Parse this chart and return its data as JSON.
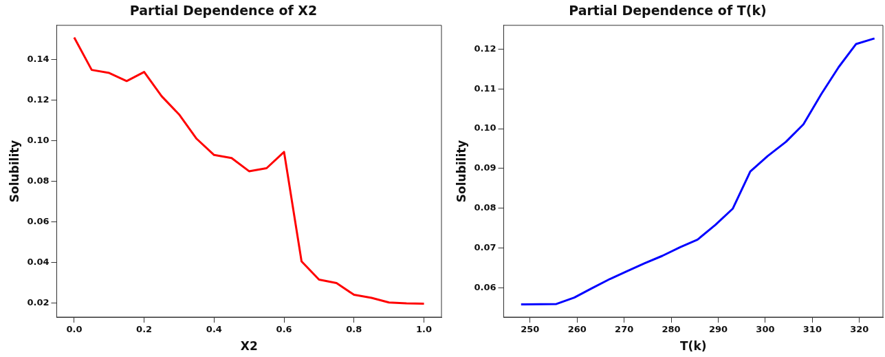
{
  "chart_data": [
    {
      "type": "line",
      "title": "Partial Dependence of X2",
      "xlabel": "X2",
      "ylabel": "Solubility",
      "grid": false,
      "legend": false,
      "marker": "none",
      "line_style": "solid",
      "x": [
        0,
        0.05,
        0.1,
        0.15,
        0.2,
        0.25,
        0.3,
        0.35,
        0.4,
        0.45,
        0.5,
        0.55,
        0.6,
        0.65,
        0.7,
        0.75,
        0.8,
        0.85,
        0.9,
        0.95,
        1.0
      ],
      "series": [
        {
          "color": "#ff0000",
          "values": [
            0.151,
            0.135,
            0.1335,
            0.1295,
            0.134,
            0.122,
            0.113,
            0.101,
            0.093,
            0.0915,
            0.085,
            0.0865,
            0.0945,
            0.0405,
            0.0315,
            0.0298,
            0.024,
            0.0225,
            0.0202,
            0.0198,
            0.0196
          ]
        }
      ],
      "xlim": [
        -0.05,
        1.05
      ],
      "ylim": [
        0.013,
        0.157
      ],
      "xticks": [
        {
          "value": 0,
          "label": "0.0"
        },
        {
          "value": 0.2,
          "label": "0.2"
        },
        {
          "value": 0.4,
          "label": "0.4"
        },
        {
          "value": 0.6,
          "label": "0.6"
        },
        {
          "value": 0.8,
          "label": "0.8"
        },
        {
          "value": 1,
          "label": "1.0"
        }
      ],
      "yticks": [
        {
          "value": 0.02,
          "label": "0.02"
        },
        {
          "value": 0.04,
          "label": "0.04"
        },
        {
          "value": 0.06,
          "label": "0.06"
        },
        {
          "value": 0.08,
          "label": "0.08"
        },
        {
          "value": 0.1,
          "label": "0.10"
        },
        {
          "value": 0.12,
          "label": "0.12"
        },
        {
          "value": 0.14,
          "label": "0.14"
        }
      ]
    },
    {
      "type": "line",
      "title": "Partial Dependence of T(k)",
      "xlabel": "T(k)",
      "ylabel": "Solubility",
      "grid": false,
      "legend": false,
      "marker": "none",
      "line_style": "solid",
      "x": [
        248.1,
        255.6,
        259.4,
        263.2,
        267,
        270.5,
        274.3,
        278.1,
        281.9,
        285.6,
        289.4,
        293.1,
        296.8,
        300.5,
        304.4,
        308.1,
        311.9,
        315.6,
        319.3,
        323.2
      ],
      "series": [
        {
          "color": "#0000ff",
          "values": [
            0.0558,
            0.0559,
            0.0575,
            0.0599,
            0.0622,
            0.0641,
            0.0661,
            0.068,
            0.0702,
            0.0721,
            0.0758,
            0.0799,
            0.0892,
            0.0931,
            0.0967,
            0.1011,
            0.1087,
            0.1155,
            0.1213,
            0.1227
          ]
        }
      ],
      "xlim": [
        244.4,
        325
      ],
      "ylim": [
        0.0526,
        0.126
      ],
      "xticks": [
        250,
        260,
        270,
        280,
        290,
        300,
        310,
        320
      ],
      "yticks": [
        {
          "value": 0.06,
          "label": "0.06"
        },
        {
          "value": 0.07,
          "label": "0.07"
        },
        {
          "value": 0.08,
          "label": "0.08"
        },
        {
          "value": 0.09,
          "label": "0.09"
        },
        {
          "value": 0.1,
          "label": "0.10"
        },
        {
          "value": 0.11,
          "label": "0.11"
        },
        {
          "value": 0.12,
          "label": "0.12"
        }
      ]
    }
  ]
}
